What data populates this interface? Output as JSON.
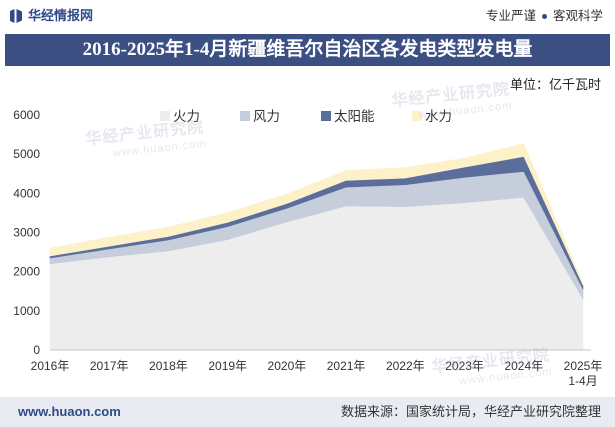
{
  "header": {
    "logo_text": "华经情报网",
    "slogan": [
      "专业严谨",
      "客观科学"
    ]
  },
  "footer": {
    "website": "www.huaon.com",
    "source": "数据来源：国家统计局，华经产业研究院整理"
  },
  "watermark": {
    "name": "华经产业研究院",
    "url": "www.huaon.com"
  },
  "colors": {
    "title_bar": "#3c4f83",
    "brand": "#2f4a88",
    "footer_bg": "#e8ecf2"
  },
  "chart_data": {
    "type": "area",
    "stacked": true,
    "title": "2016-2025年1-4月新疆维吾尔自治区各发电类型发电量",
    "unit": "单位：亿千瓦时",
    "categories": [
      "2016年",
      "2017年",
      "2018年",
      "2019年",
      "2020年",
      "2021年",
      "2022年",
      "2023年",
      "2024年",
      "2025年\n1-4月"
    ],
    "ylim": [
      0,
      6000
    ],
    "yticks": [
      0,
      1000,
      2000,
      3000,
      4000,
      5000,
      6000
    ],
    "grid": false,
    "legend": "top",
    "series": [
      {
        "name": "火力",
        "color": "#ededed",
        "values": [
          2200,
          2380,
          2530,
          2820,
          3270,
          3680,
          3660,
          3760,
          3900,
          1300
        ]
      },
      {
        "name": "风力",
        "color": "#c6cedb",
        "values": [
          150,
          200,
          280,
          330,
          350,
          480,
          560,
          650,
          660,
          250
        ]
      },
      {
        "name": "太阳能",
        "color": "#5a6d9b",
        "values": [
          50,
          70,
          90,
          110,
          120,
          170,
          170,
          260,
          380,
          100
        ]
      },
      {
        "name": "水力",
        "color": "#fdf1c9",
        "values": [
          200,
          230,
          240,
          250,
          240,
          250,
          270,
          230,
          330,
          60
        ]
      }
    ]
  }
}
